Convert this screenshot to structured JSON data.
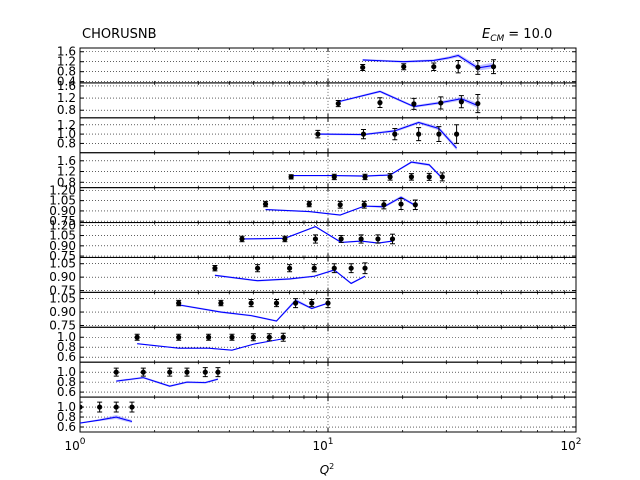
{
  "title_left": "CHORUSNB",
  "title_right_symbol": "E",
  "title_right_sub": "CM",
  "title_right_value": "= 10.0",
  "xlabel_symbol": "Q",
  "xlabel_sup": "2",
  "x_tick_base": "10",
  "colors": {
    "theory": "#0000ff",
    "band": "#9999ff",
    "data": "#000000",
    "grid": "#000000"
  },
  "chart_data": {
    "type": "scatter",
    "x_scale": "log",
    "xlim": [
      1,
      100
    ],
    "x_ticks": [
      {
        "value": 1,
        "exp": "0"
      },
      {
        "value": 10,
        "exp": "1"
      },
      {
        "value": 100,
        "exp": "2"
      }
    ],
    "grid": true,
    "panels": [
      {
        "ylim": [
          0.35,
          1.75
        ],
        "ticks": [
          0.4,
          0.8,
          1.2,
          1.6
        ],
        "tick_labels": [
          "0.4",
          "0.8",
          "1.2",
          "1.6"
        ],
        "data": [
          {
            "x": 13.8,
            "y": 0.97,
            "err": 0.12
          },
          {
            "x": 20.2,
            "y": 1.0,
            "err": 0.12
          },
          {
            "x": 26.7,
            "y": 1.0,
            "err": 0.15
          },
          {
            "x": 33.5,
            "y": 1.0,
            "err": 0.25
          },
          {
            "x": 40.2,
            "y": 0.97,
            "err": 0.28
          },
          {
            "x": 46.5,
            "y": 1.0,
            "err": 0.28
          }
        ],
        "theory": {
          "x": [
            13.8,
            20.2,
            26.7,
            30.5,
            33.5,
            40.2,
            46.5
          ],
          "y": [
            1.27,
            1.2,
            1.25,
            1.35,
            1.45,
            0.95,
            1.05
          ],
          "band": [
            0.04,
            0.04,
            0.05,
            0.06,
            0.07,
            0.1,
            0.12
          ]
        }
      },
      {
        "ylim": [
          0.55,
          1.7
        ],
        "ticks": [
          0.8,
          1.2,
          1.6
        ],
        "tick_labels": [
          "0.8",
          "1.2",
          "1.6"
        ],
        "data": [
          {
            "x": 11.0,
            "y": 1.02,
            "err": 0.1
          },
          {
            "x": 16.2,
            "y": 1.05,
            "err": 0.16
          },
          {
            "x": 22.2,
            "y": 1.01,
            "err": 0.18
          },
          {
            "x": 28.5,
            "y": 1.04,
            "err": 0.2
          },
          {
            "x": 34.5,
            "y": 1.08,
            "err": 0.2
          },
          {
            "x": 40.2,
            "y": 1.02,
            "err": 0.3
          }
        ],
        "theory": {
          "x": [
            11.0,
            16.2,
            22.2,
            28.5,
            34.5,
            40.2
          ],
          "y": [
            1.08,
            1.42,
            0.92,
            1.05,
            1.18,
            0.95
          ],
          "band": [
            0.03,
            0.04,
            0.04,
            0.05,
            0.06,
            0.08
          ]
        }
      },
      {
        "ylim": [
          0.6,
          1.35
        ],
        "ticks": [
          0.8,
          1.0,
          1.2
        ],
        "tick_labels": [
          "0.8",
          "1.0",
          "1.2"
        ],
        "data": [
          {
            "x": 9.1,
            "y": 1.0,
            "err": 0.08
          },
          {
            "x": 13.9,
            "y": 1.0,
            "err": 0.1
          },
          {
            "x": 18.6,
            "y": 1.0,
            "err": 0.12
          },
          {
            "x": 23.2,
            "y": 1.0,
            "err": 0.14
          },
          {
            "x": 28.0,
            "y": 1.0,
            "err": 0.16
          },
          {
            "x": 33.0,
            "y": 1.0,
            "err": 0.2
          }
        ],
        "theory": {
          "x": [
            9.1,
            13.9,
            18.6,
            23.2,
            28.0,
            33.0
          ],
          "y": [
            1.0,
            0.99,
            1.07,
            1.25,
            1.12,
            0.7
          ],
          "band": [
            0.02,
            0.02,
            0.03,
            0.03,
            0.04,
            0.05
          ]
        }
      },
      {
        "ylim": [
          0.6,
          1.9
        ],
        "ticks": [
          0.8,
          1.2,
          1.6
        ],
        "tick_labels": [
          "0.8",
          "1.2",
          "1.6"
        ],
        "data": [
          {
            "x": 7.1,
            "y": 1.0,
            "err": 0.08
          },
          {
            "x": 10.6,
            "y": 1.0,
            "err": 0.1
          },
          {
            "x": 14.1,
            "y": 1.0,
            "err": 0.1
          },
          {
            "x": 17.8,
            "y": 1.0,
            "err": 0.12
          },
          {
            "x": 21.7,
            "y": 1.0,
            "err": 0.12
          },
          {
            "x": 25.6,
            "y": 1.0,
            "err": 0.13
          },
          {
            "x": 28.9,
            "y": 1.0,
            "err": 0.15
          }
        ],
        "theory": {
          "x": [
            7.1,
            10.6,
            14.1,
            17.8,
            21.7,
            25.6,
            28.9
          ],
          "y": [
            1.05,
            1.05,
            1.03,
            1.07,
            1.55,
            1.45,
            0.95
          ],
          "band": [
            0.02,
            0.02,
            0.03,
            0.03,
            0.04,
            0.05,
            0.05
          ]
        }
      },
      {
        "ylim": [
          0.73,
          1.24
        ],
        "ticks": [
          0.75,
          0.9,
          1.05,
          1.2
        ],
        "tick_labels": [
          "0.75",
          "0.90",
          "1.05",
          "1.20"
        ],
        "data": [
          {
            "x": 5.6,
            "y": 1.0,
            "err": 0.04
          },
          {
            "x": 8.4,
            "y": 1.0,
            "err": 0.04
          },
          {
            "x": 11.2,
            "y": 0.99,
            "err": 0.05
          },
          {
            "x": 14.0,
            "y": 0.99,
            "err": 0.05
          },
          {
            "x": 16.8,
            "y": 0.99,
            "err": 0.06
          },
          {
            "x": 19.7,
            "y": 1.0,
            "err": 0.08
          },
          {
            "x": 22.5,
            "y": 0.99,
            "err": 0.07
          }
        ],
        "theory": {
          "x": [
            5.6,
            8.4,
            11.2,
            14.0,
            16.8,
            19.7,
            22.5
          ],
          "y": [
            0.92,
            0.89,
            0.84,
            0.97,
            0.96,
            1.1,
            0.98
          ],
          "band": [
            0.01,
            0.01,
            0.01,
            0.01,
            0.02,
            0.02,
            0.02
          ]
        }
      },
      {
        "ylim": [
          0.73,
          1.24
        ],
        "ticks": [
          0.75,
          0.9,
          1.05,
          1.2
        ],
        "tick_labels": [
          "0.75",
          "0.90",
          "1.05",
          "1.20"
        ],
        "data": [
          {
            "x": 4.5,
            "y": 1.0,
            "err": 0.04
          },
          {
            "x": 6.7,
            "y": 1.0,
            "err": 0.04
          },
          {
            "x": 8.9,
            "y": 1.0,
            "err": 0.06
          },
          {
            "x": 11.3,
            "y": 1.0,
            "err": 0.05
          },
          {
            "x": 13.6,
            "y": 1.0,
            "err": 0.06
          },
          {
            "x": 15.9,
            "y": 1.0,
            "err": 0.06
          },
          {
            "x": 18.2,
            "y": 1.0,
            "err": 0.07
          }
        ],
        "theory": {
          "x": [
            4.5,
            6.7,
            8.9,
            11.3,
            13.6,
            15.9,
            18.2
          ],
          "y": [
            1.0,
            1.01,
            1.18,
            0.95,
            0.97,
            0.94,
            0.97
          ],
          "band": [
            0.01,
            0.01,
            0.01,
            0.01,
            0.01,
            0.01,
            0.01
          ]
        }
      },
      {
        "ylim": [
          0.73,
          1.12
        ],
        "ticks": [
          0.75,
          0.9,
          1.05
        ],
        "tick_labels": [
          "0.75",
          "0.90",
          "1.05"
        ],
        "data": [
          {
            "x": 3.5,
            "y": 1.0,
            "err": 0.03
          },
          {
            "x": 5.2,
            "y": 1.0,
            "err": 0.04
          },
          {
            "x": 7.0,
            "y": 1.0,
            "err": 0.04
          },
          {
            "x": 8.8,
            "y": 1.0,
            "err": 0.04
          },
          {
            "x": 10.6,
            "y": 1.0,
            "err": 0.05
          },
          {
            "x": 12.4,
            "y": 1.0,
            "err": 0.05
          },
          {
            "x": 14.1,
            "y": 1.0,
            "err": 0.06
          }
        ],
        "theory": {
          "x": [
            3.5,
            5.2,
            7.0,
            8.8,
            10.6,
            12.4,
            14.1
          ],
          "y": [
            0.92,
            0.86,
            0.88,
            0.91,
            0.98,
            0.83,
            0.91
          ],
          "band": [
            0.01,
            0.01,
            0.01,
            0.01,
            0.01,
            0.01,
            0.01
          ]
        }
      },
      {
        "ylim": [
          0.73,
          1.12
        ],
        "ticks": [
          0.75,
          0.9,
          1.05
        ],
        "tick_labels": [
          "0.75",
          "0.90",
          "1.05"
        ],
        "data": [
          {
            "x": 2.5,
            "y": 1.0,
            "err": 0.03
          },
          {
            "x": 3.7,
            "y": 1.0,
            "err": 0.03
          },
          {
            "x": 4.9,
            "y": 1.0,
            "err": 0.04
          },
          {
            "x": 6.2,
            "y": 1.0,
            "err": 0.04
          },
          {
            "x": 7.4,
            "y": 1.0,
            "err": 0.05
          },
          {
            "x": 8.6,
            "y": 1.0,
            "err": 0.04
          },
          {
            "x": 10.0,
            "y": 1.0,
            "err": 0.05
          }
        ],
        "theory": {
          "x": [
            2.5,
            3.7,
            4.9,
            6.2,
            7.4,
            8.6,
            10.0
          ],
          "y": [
            0.98,
            0.9,
            0.86,
            0.8,
            1.03,
            0.94,
            1.0
          ],
          "band": [
            0.01,
            0.01,
            0.01,
            0.01,
            0.02,
            0.01,
            0.01
          ]
        }
      },
      {
        "ylim": [
          0.5,
          1.2
        ],
        "ticks": [
          0.6,
          0.8,
          1.0
        ],
        "tick_labels": [
          "0.6",
          "0.8",
          "1.0"
        ],
        "data": [
          {
            "x": 1.7,
            "y": 1.0,
            "err": 0.06
          },
          {
            "x": 2.5,
            "y": 1.0,
            "err": 0.06
          },
          {
            "x": 3.3,
            "y": 1.0,
            "err": 0.06
          },
          {
            "x": 4.1,
            "y": 1.0,
            "err": 0.06
          },
          {
            "x": 5.0,
            "y": 1.0,
            "err": 0.07
          },
          {
            "x": 5.8,
            "y": 1.0,
            "err": 0.07
          },
          {
            "x": 6.6,
            "y": 1.0,
            "err": 0.08
          }
        ],
        "theory": {
          "x": [
            1.7,
            2.5,
            3.3,
            4.1,
            5.0,
            5.8,
            6.6
          ],
          "y": [
            0.87,
            0.78,
            0.78,
            0.74,
            0.86,
            0.92,
            0.97
          ],
          "band": [
            0.01,
            0.01,
            0.01,
            0.01,
            0.01,
            0.01,
            0.01
          ]
        }
      },
      {
        "ylim": [
          0.5,
          1.2
        ],
        "ticks": [
          0.6,
          0.8,
          1.0
        ],
        "tick_labels": [
          "0.6",
          "0.8",
          "1.0"
        ],
        "data": [
          {
            "x": 1.4,
            "y": 1.0,
            "err": 0.08
          },
          {
            "x": 1.8,
            "y": 1.0,
            "err": 0.08
          },
          {
            "x": 2.3,
            "y": 1.0,
            "err": 0.08
          },
          {
            "x": 2.7,
            "y": 1.0,
            "err": 0.08
          },
          {
            "x": 3.2,
            "y": 1.0,
            "err": 0.09
          },
          {
            "x": 3.6,
            "y": 1.0,
            "err": 0.09
          }
        ],
        "theory": {
          "x": [
            1.4,
            1.8,
            2.3,
            2.7,
            3.2,
            3.6
          ],
          "y": [
            0.82,
            0.89,
            0.72,
            0.8,
            0.79,
            0.86
          ],
          "band": [
            0.02,
            0.02,
            0.02,
            0.02,
            0.02,
            0.02
          ]
        }
      },
      {
        "ylim": [
          0.5,
          1.2
        ],
        "ticks": [
          0.6,
          0.8,
          1.0
        ],
        "tick_labels": [
          "0.6",
          "0.8",
          "1.0"
        ],
        "data": [
          {
            "x": 1.0,
            "y": 1.0,
            "err": 0.1
          },
          {
            "x": 1.2,
            "y": 1.0,
            "err": 0.1
          },
          {
            "x": 1.4,
            "y": 1.0,
            "err": 0.1
          },
          {
            "x": 1.62,
            "y": 1.0,
            "err": 0.1
          }
        ],
        "theory": {
          "x": [
            1.0,
            1.2,
            1.4,
            1.62
          ],
          "y": [
            0.68,
            0.74,
            0.8,
            0.71
          ],
          "band": [
            0.01,
            0.02,
            0.04,
            0.03
          ]
        }
      }
    ]
  }
}
